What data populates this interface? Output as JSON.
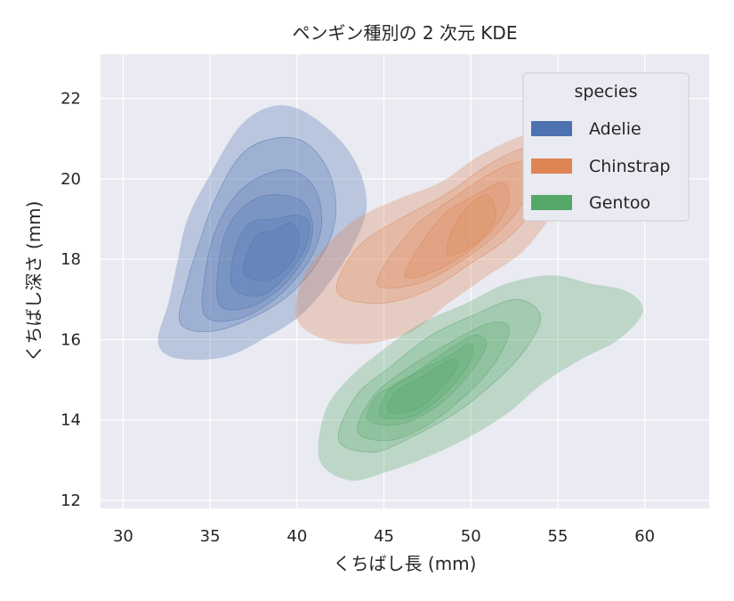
{
  "chart_data": {
    "type": "kde2d",
    "title": "ペンギン種別の 2 次元 KDE",
    "xlabel": "くちばし長 (mm)",
    "ylabel": "くちばし深さ (mm)",
    "xlim": [
      28.7,
      63.7
    ],
    "ylim": [
      11.8,
      23.1
    ],
    "xticks": [
      30,
      35,
      40,
      45,
      50,
      55,
      60
    ],
    "yticks": [
      12,
      14,
      16,
      18,
      20,
      22
    ],
    "grid": true,
    "legend": {
      "title": "species",
      "placement": "top-right",
      "entries": [
        "Adelie",
        "Chinstrap",
        "Gentoo"
      ]
    },
    "series": [
      {
        "name": "Adelie",
        "color": "#4c72b0",
        "levels": [
          [
            [
              32.0,
              16.0
            ],
            [
              32.6,
              15.6
            ],
            [
              34.2,
              15.5
            ],
            [
              36.1,
              15.6
            ],
            [
              38.0,
              16.0
            ],
            [
              40.2,
              16.6
            ],
            [
              42.0,
              17.5
            ],
            [
              43.3,
              18.4
            ],
            [
              44.0,
              19.3
            ],
            [
              43.6,
              20.2
            ],
            [
              42.4,
              21.0
            ],
            [
              40.3,
              21.7
            ],
            [
              38.5,
              21.8
            ],
            [
              36.7,
              21.3
            ],
            [
              35.0,
              20.1
            ],
            [
              33.7,
              19.0
            ],
            [
              33.1,
              17.9
            ],
            [
              32.6,
              16.9
            ]
          ],
          [
            [
              33.3,
              16.4
            ],
            [
              35.0,
              16.2
            ],
            [
              37.2,
              16.5
            ],
            [
              39.5,
              17.1
            ],
            [
              41.3,
              18.0
            ],
            [
              42.2,
              19.0
            ],
            [
              41.9,
              20.1
            ],
            [
              40.5,
              20.9
            ],
            [
              38.6,
              21.0
            ],
            [
              36.8,
              20.6
            ],
            [
              35.3,
              19.5
            ],
            [
              34.3,
              18.3
            ],
            [
              33.6,
              17.3
            ]
          ],
          [
            [
              34.7,
              16.6
            ],
            [
              36.5,
              16.5
            ],
            [
              38.7,
              17.0
            ],
            [
              40.6,
              17.9
            ],
            [
              41.4,
              18.8
            ],
            [
              41.1,
              19.7
            ],
            [
              39.8,
              20.2
            ],
            [
              38.1,
              20.1
            ],
            [
              36.5,
              19.6
            ],
            [
              35.3,
              18.7
            ],
            [
              34.7,
              17.6
            ]
          ],
          [
            [
              35.5,
              16.9
            ],
            [
              37.2,
              16.8
            ],
            [
              39.1,
              17.3
            ],
            [
              40.5,
              18.1
            ],
            [
              40.9,
              18.8
            ],
            [
              40.4,
              19.4
            ],
            [
              39.1,
              19.6
            ],
            [
              37.6,
              19.5
            ],
            [
              36.3,
              19.0
            ],
            [
              35.6,
              18.2
            ]
          ],
          [
            [
              36.3,
              17.3
            ],
            [
              37.9,
              17.1
            ],
            [
              39.4,
              17.6
            ],
            [
              40.5,
              18.3
            ],
            [
              40.7,
              18.9
            ],
            [
              40.0,
              19.1
            ],
            [
              38.7,
              19.0
            ],
            [
              37.3,
              18.9
            ],
            [
              36.4,
              18.2
            ]
          ],
          [
            [
              37.0,
              17.6
            ],
            [
              38.5,
              17.5
            ],
            [
              39.8,
              18.0
            ],
            [
              40.1,
              18.6
            ],
            [
              39.6,
              18.9
            ],
            [
              38.6,
              18.7
            ],
            [
              37.7,
              18.6
            ],
            [
              37.1,
              18.1
            ]
          ]
        ]
      },
      {
        "name": "Chinstrap",
        "color": "#dd8452",
        "levels": [
          [
            [
              40.0,
              16.5
            ],
            [
              41.6,
              16.0
            ],
            [
              44.0,
              15.9
            ],
            [
              46.6,
              16.2
            ],
            [
              48.7,
              16.9
            ],
            [
              51.0,
              17.6
            ],
            [
              53.0,
              18.2
            ],
            [
              54.8,
              19.2
            ],
            [
              56.0,
              20.3
            ],
            [
              55.4,
              21.1
            ],
            [
              53.2,
              21.1
            ],
            [
              50.6,
              20.6
            ],
            [
              48.2,
              19.9
            ],
            [
              45.8,
              19.5
            ],
            [
              43.4,
              19.0
            ],
            [
              41.6,
              18.3
            ],
            [
              40.3,
              17.5
            ]
          ],
          [
            [
              42.3,
              17.2
            ],
            [
              44.6,
              16.9
            ],
            [
              47.4,
              17.2
            ],
            [
              50.0,
              17.9
            ],
            [
              52.3,
              18.6
            ],
            [
              54.0,
              19.5
            ],
            [
              54.8,
              20.4
            ],
            [
              53.5,
              20.8
            ],
            [
              51.2,
              20.4
            ],
            [
              48.5,
              19.6
            ],
            [
              45.9,
              19.0
            ],
            [
              43.5,
              18.3
            ]
          ],
          [
            [
              44.6,
              17.4
            ],
            [
              47.0,
              17.4
            ],
            [
              49.6,
              18.0
            ],
            [
              51.9,
              18.8
            ],
            [
              53.3,
              19.7
            ],
            [
              53.1,
              20.4
            ],
            [
              51.4,
              20.2
            ],
            [
              48.9,
              19.5
            ],
            [
              46.5,
              18.7
            ]
          ],
          [
            [
              46.2,
              17.6
            ],
            [
              48.4,
              17.8
            ],
            [
              50.7,
              18.5
            ],
            [
              52.1,
              19.3
            ],
            [
              51.9,
              19.9
            ],
            [
              50.3,
              19.6
            ],
            [
              48.2,
              19.0
            ]
          ],
          [
            [
              48.7,
              18.1
            ],
            [
              50.3,
              18.4
            ],
            [
              51.4,
              19.0
            ],
            [
              51.0,
              19.6
            ],
            [
              49.8,
              19.3
            ],
            [
              48.9,
              18.7
            ]
          ]
        ]
      },
      {
        "name": "Gentoo",
        "color": "#55a868",
        "levels": [
          [
            [
              41.3,
              13.0
            ],
            [
              43.0,
              12.5
            ],
            [
              45.1,
              12.7
            ],
            [
              47.6,
              13.1
            ],
            [
              50.0,
              13.6
            ],
            [
              52.2,
              14.2
            ],
            [
              54.1,
              14.9
            ],
            [
              56.3,
              15.5
            ],
            [
              58.5,
              16.0
            ],
            [
              59.9,
              16.7
            ],
            [
              59.0,
              17.2
            ],
            [
              56.8,
              17.4
            ],
            [
              54.7,
              17.6
            ],
            [
              52.1,
              17.4
            ],
            [
              49.7,
              16.9
            ],
            [
              47.1,
              16.4
            ],
            [
              44.8,
              15.7
            ],
            [
              42.9,
              15.0
            ],
            [
              41.6,
              14.2
            ]
          ],
          [
            [
              42.4,
              13.5
            ],
            [
              44.4,
              13.2
            ],
            [
              46.7,
              13.6
            ],
            [
              49.2,
              14.2
            ],
            [
              51.5,
              15.0
            ],
            [
              53.2,
              15.8
            ],
            [
              54.0,
              16.6
            ],
            [
              52.6,
              17.0
            ],
            [
              50.1,
              16.6
            ],
            [
              47.7,
              16.1
            ],
            [
              45.3,
              15.3
            ],
            [
              43.4,
              14.6
            ]
          ],
          [
            [
              43.5,
              13.7
            ],
            [
              45.4,
              13.5
            ],
            [
              47.6,
              13.9
            ],
            [
              49.9,
              14.7
            ],
            [
              51.5,
              15.5
            ],
            [
              52.2,
              16.3
            ],
            [
              51.0,
              16.4
            ],
            [
              48.7,
              15.9
            ],
            [
              46.4,
              15.3
            ],
            [
              44.4,
              14.6
            ]
          ],
          [
            [
              44.1,
              14.0
            ],
            [
              46.0,
              13.9
            ],
            [
              48.2,
              14.4
            ],
            [
              50.0,
              15.2
            ],
            [
              50.9,
              15.9
            ],
            [
              50.1,
              16.1
            ],
            [
              48.2,
              15.6
            ],
            [
              46.2,
              15.0
            ],
            [
              44.6,
              14.6
            ]
          ],
          [
            [
              44.8,
              14.1
            ],
            [
              46.7,
              14.1
            ],
            [
              48.6,
              14.7
            ],
            [
              49.9,
              15.4
            ],
            [
              50.0,
              15.9
            ],
            [
              48.8,
              15.6
            ],
            [
              47.0,
              15.2
            ],
            [
              45.4,
              14.8
            ]
          ],
          [
            [
              45.3,
              14.2
            ],
            [
              47.0,
              14.3
            ],
            [
              48.5,
              14.9
            ],
            [
              49.3,
              15.4
            ],
            [
              48.8,
              15.5
            ],
            [
              47.3,
              15.1
            ],
            [
              45.7,
              14.7
            ]
          ]
        ]
      }
    ]
  }
}
